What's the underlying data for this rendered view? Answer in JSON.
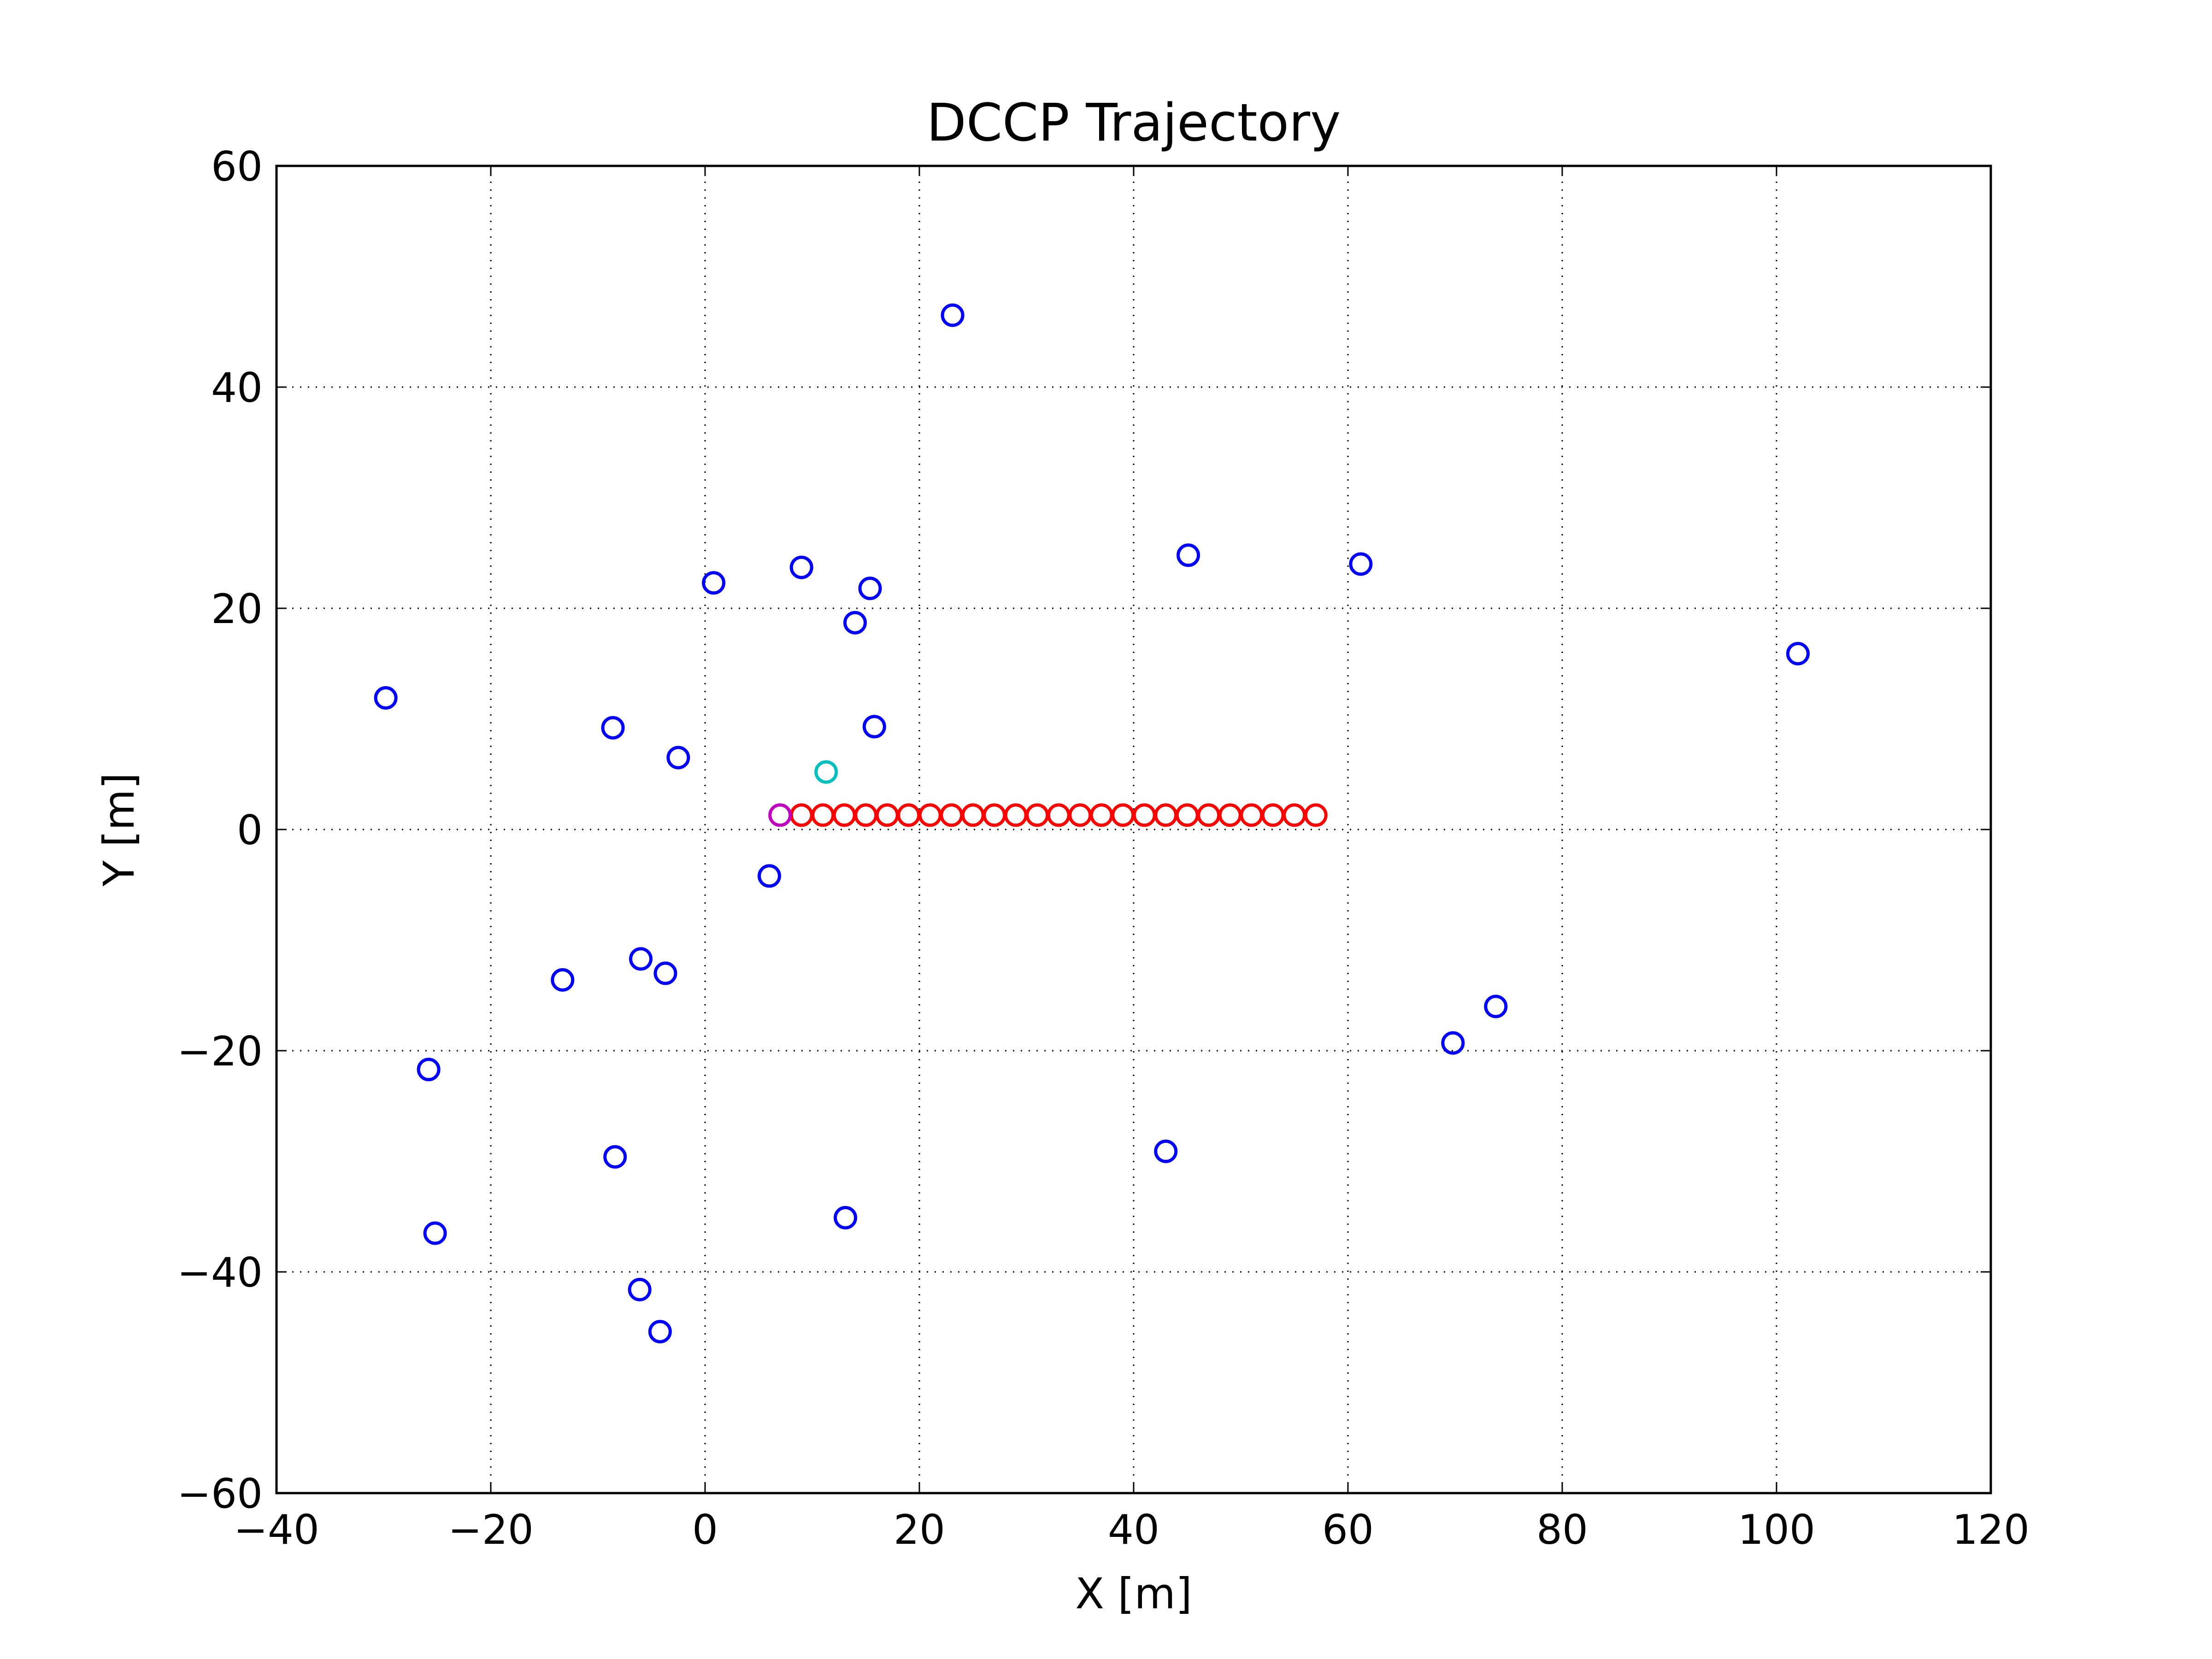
{
  "chart_data": {
    "type": "scatter",
    "title": "DCCP Trajectory",
    "xlabel": "X [m]",
    "ylabel": "Y [m]",
    "xlim": [
      -40,
      120
    ],
    "ylim": [
      -60,
      60
    ],
    "xticks": [
      -40,
      -20,
      0,
      20,
      40,
      60,
      80,
      100,
      120
    ],
    "yticks": [
      -60,
      -40,
      -20,
      0,
      20,
      40,
      60
    ],
    "xtick_labels": [
      "−40",
      "−20",
      "0",
      "20",
      "40",
      "60",
      "80",
      "100",
      "120"
    ],
    "ytick_labels": [
      "−60",
      "−40",
      "−20",
      "0",
      "20",
      "40",
      "60"
    ],
    "grid": true,
    "marker": "open-circle",
    "series": [
      {
        "color": "#0000ff",
        "points": [
          [
            23.1,
            46.5
          ],
          [
            45.1,
            24.8
          ],
          [
            61.2,
            24.0
          ],
          [
            0.8,
            22.3
          ],
          [
            9.0,
            23.7
          ],
          [
            15.4,
            21.8
          ],
          [
            14.0,
            18.7
          ],
          [
            102.0,
            15.9
          ],
          [
            -29.8,
            11.9
          ],
          [
            -8.6,
            9.2
          ],
          [
            15.8,
            9.3
          ],
          [
            -2.5,
            6.5
          ],
          [
            6.0,
            -4.2
          ],
          [
            -6.0,
            -11.7
          ],
          [
            -3.7,
            -13.0
          ],
          [
            -13.3,
            -13.6
          ],
          [
            73.8,
            -16.0
          ],
          [
            69.8,
            -19.3
          ],
          [
            -25.8,
            -21.7
          ],
          [
            43.0,
            -29.1
          ],
          [
            -8.4,
            -29.6
          ],
          [
            13.1,
            -35.1
          ],
          [
            -25.2,
            -36.5
          ],
          [
            -6.1,
            -41.6
          ],
          [
            -4.2,
            -45.4
          ]
        ]
      },
      {
        "color": "#ff0000",
        "points": [
          [
            9.0,
            1.3
          ],
          [
            11.0,
            1.3
          ],
          [
            13.0,
            1.3
          ],
          [
            15.0,
            1.3
          ],
          [
            17.0,
            1.3
          ],
          [
            19.0,
            1.3
          ],
          [
            21.0,
            1.3
          ],
          [
            23.0,
            1.3
          ],
          [
            25.0,
            1.3
          ],
          [
            27.0,
            1.3
          ],
          [
            29.0,
            1.3
          ],
          [
            31.0,
            1.3
          ],
          [
            33.0,
            1.3
          ],
          [
            35.0,
            1.3
          ],
          [
            37.0,
            1.3
          ],
          [
            39.0,
            1.3
          ],
          [
            41.0,
            1.3
          ],
          [
            43.0,
            1.3
          ],
          [
            45.0,
            1.3
          ],
          [
            47.0,
            1.3
          ],
          [
            49.0,
            1.3
          ],
          [
            51.0,
            1.3
          ],
          [
            53.0,
            1.3
          ],
          [
            55.0,
            1.3
          ],
          [
            57.0,
            1.3
          ]
        ]
      },
      {
        "color": "#bf00bf",
        "points": [
          [
            7.0,
            1.3
          ]
        ]
      },
      {
        "color": "#00bfbf",
        "points": [
          [
            11.3,
            5.2
          ]
        ]
      }
    ]
  }
}
